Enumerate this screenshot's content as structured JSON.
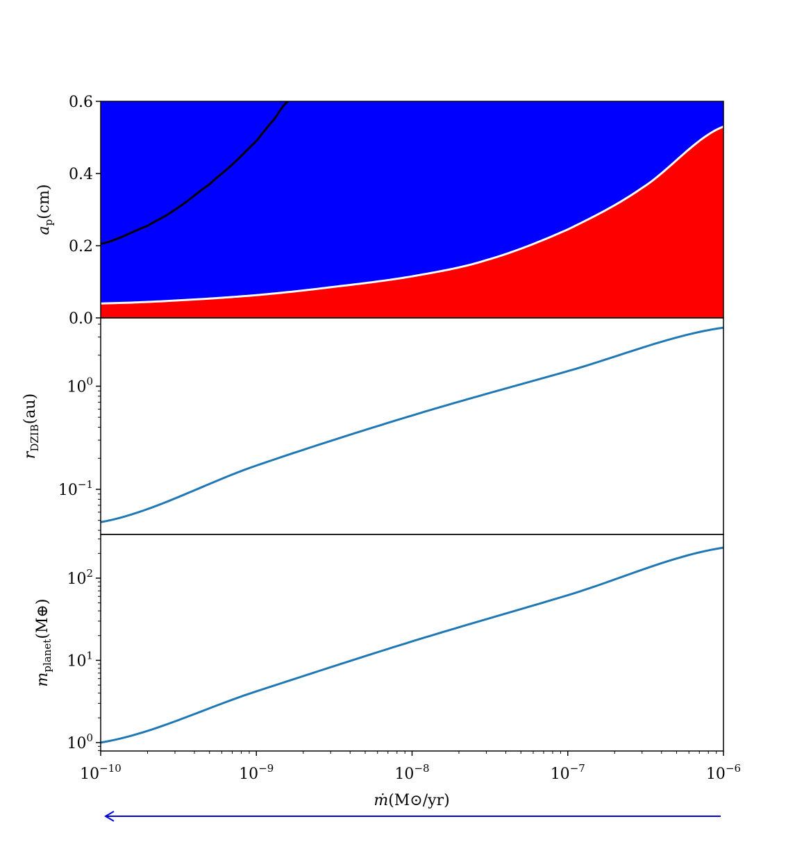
{
  "chart_data": [
    {
      "type": "area",
      "panel": "top",
      "ylabel": "a_p(cm)",
      "ylabel_parts": {
        "main": "a",
        "sub": "p",
        "unit": "(cm)"
      },
      "xscale": "log",
      "xlim": [
        1e-10,
        1e-06
      ],
      "ylim": [
        0,
        0.6
      ],
      "yticks": [
        0.0,
        0.2,
        0.4,
        0.6
      ],
      "ytick_labels": [
        "0.0",
        "0.2",
        "0.4",
        "0.6"
      ],
      "region_colors": {
        "above": "#0000ff",
        "below": "#ff0000"
      },
      "series": [
        {
          "role": "boundary",
          "color": "#ffffff",
          "x": [
            1e-10,
            3e-10,
            1e-09,
            3e-09,
            1e-08,
            3e-08,
            1e-07,
            3e-07,
            1e-06
          ],
          "y": [
            0.04,
            0.048,
            0.063,
            0.085,
            0.115,
            0.16,
            0.245,
            0.36,
            0.53
          ]
        },
        {
          "role": "curve",
          "color": "#000000",
          "x": [
            1e-10,
            2e-10,
            3e-10,
            5e-10,
            7e-10,
            1e-09,
            1.3e-09,
            1.6e-09
          ],
          "y": [
            0.205,
            0.255,
            0.3,
            0.37,
            0.425,
            0.49,
            0.55,
            0.6
          ]
        }
      ]
    },
    {
      "type": "line",
      "panel": "middle",
      "ylabel": "r_DZIB(au)",
      "ylabel_parts": {
        "main": "r",
        "sub": "DZIB",
        "unit": "(au)"
      },
      "xscale": "log",
      "yscale": "log",
      "xlim": [
        1e-10,
        1e-06
      ],
      "ylim": [
        0.0365,
        4.6
      ],
      "yticks": [
        0.1,
        1
      ],
      "ytick_labels": [
        {
          "base": "10",
          "exp": "−1"
        },
        {
          "base": "10",
          "exp": "0"
        }
      ],
      "series": [
        {
          "color": "#1f77b4",
          "x": [
            1e-10,
            1e-09,
            1e-08,
            1e-07,
            1e-06
          ],
          "y": [
            0.048,
            0.17,
            0.52,
            1.4,
            3.7
          ]
        }
      ]
    },
    {
      "type": "line",
      "panel": "bottom",
      "ylabel": "m_planet(M⊕)",
      "ylabel_parts": {
        "main": "m",
        "sub": "planet",
        "unit": "(M⊕)"
      },
      "xlabel": "ṁ(M⊙/yr)",
      "xlabel_parts": {
        "main": "ṁ",
        "unit": "(M⊙/yr)"
      },
      "xscale": "log",
      "yscale": "log",
      "xlim": [
        1e-10,
        1e-06
      ],
      "ylim": [
        0.79,
        340
      ],
      "yticks": [
        1,
        10,
        100
      ],
      "ytick_labels": [
        {
          "base": "10",
          "exp": "0"
        },
        {
          "base": "10",
          "exp": "1"
        },
        {
          "base": "10",
          "exp": "2"
        }
      ],
      "xticks": [
        1e-10,
        1e-09,
        1e-08,
        1e-07,
        1e-06
      ],
      "xtick_labels": [
        {
          "base": "10",
          "exp": "−10"
        },
        {
          "base": "10",
          "exp": "−9"
        },
        {
          "base": "10",
          "exp": "−8"
        },
        {
          "base": "10",
          "exp": "−7"
        },
        {
          "base": "10",
          "exp": "−6"
        }
      ],
      "series": [
        {
          "color": "#1f77b4",
          "x": [
            1e-10,
            1e-09,
            1e-08,
            1e-07,
            1e-06
          ],
          "y": [
            1.0,
            4.2,
            17,
            62,
            235
          ]
        }
      ]
    }
  ],
  "annotation_arrow": {
    "direction": "left",
    "color": "#0000dd"
  }
}
